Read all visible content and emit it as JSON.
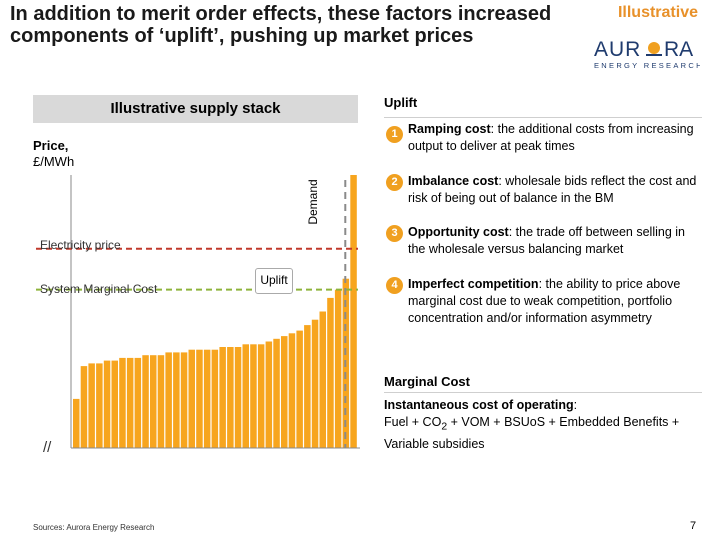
{
  "header": {
    "title": "In addition to merit order effects, these factors increased components of ‘uplift’, pushing up market prices",
    "tag": "Illustrative"
  },
  "logo": {
    "name": "AURORA",
    "subtitle": "ENERGY RESEARCH",
    "accent": "#f0a020",
    "text_color": "#1f3b6e"
  },
  "supply_stack": {
    "heading": "Illustrative supply stack",
    "y_label_line1": "Price,",
    "y_label_line2": "£/MWh",
    "demand_label": "Demand",
    "electricity_price_label": "Electricity price",
    "smc_label": "System Marginal Cost",
    "uplift_label": "Uplift",
    "break_mark": "//"
  },
  "chart_data": {
    "type": "bar",
    "title": "Illustrative supply stack",
    "ylabel": "Price, £/MWh",
    "xlabel": "",
    "values": [
      18,
      30,
      31,
      31,
      32,
      32,
      33,
      33,
      33,
      34,
      34,
      34,
      35,
      35,
      35,
      36,
      36,
      36,
      36,
      37,
      37,
      37,
      38,
      38,
      38,
      39,
      40,
      41,
      42,
      43,
      45,
      47,
      50,
      55,
      58,
      62,
      100
    ],
    "ylim": [
      0,
      100
    ],
    "electricity_price": 73,
    "system_marginal_cost": 58,
    "demand_index": 35,
    "bar_color": "#f7a51e",
    "electricity_price_color": "#c0392b",
    "smc_color": "#8db33a",
    "demand_color": "#8a8a8a"
  },
  "uplift": {
    "heading": "Uplift",
    "items": [
      {
        "num": "1",
        "bold": "Ramping cost",
        "text": ": the additional costs from increasing output to deliver at peak times"
      },
      {
        "num": "2",
        "bold": "Imbalance cost",
        "text": ": wholesale bids reflect the cost and risk of being out of balance in the BM"
      },
      {
        "num": "3",
        "bold": "Opportunity cost",
        "text": ": the trade off between selling in the wholesale versus balancing market"
      },
      {
        "num": "4",
        "bold": "Imperfect competition",
        "text": ": the ability to price above marginal cost due to weak competition, portfolio concentration and/or information asymmetry"
      }
    ]
  },
  "marginal_cost": {
    "heading": "Marginal Cost",
    "subheading": "Instantaneous cost of operating",
    "colon": ":",
    "formula_part1": "Fuel + CO",
    "formula_sub": "2",
    "formula_part2": " + VOM + BSUoS + Embedded Benefits + Variable subsidies"
  },
  "footer": {
    "source": "Sources: Aurora Energy Research",
    "page": "7"
  }
}
